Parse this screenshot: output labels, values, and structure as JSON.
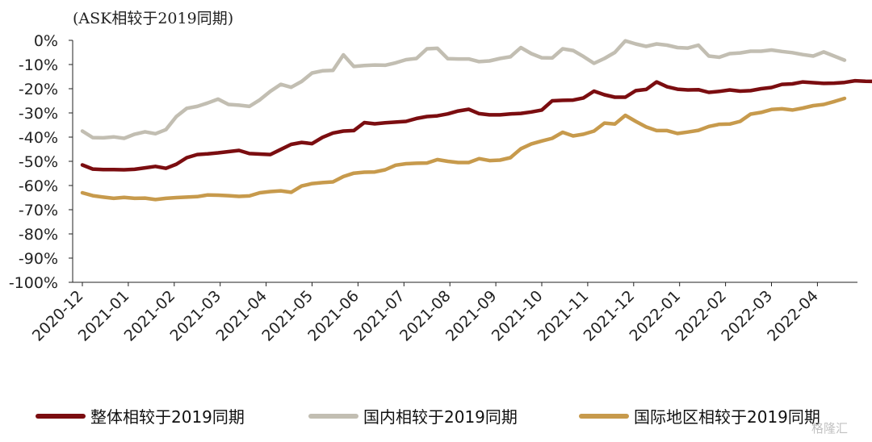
{
  "chart_data": {
    "type": "line",
    "title": "(ASK相较于2019同期)",
    "xlabel": "",
    "ylabel": "",
    "ylim": [
      -100,
      0
    ],
    "yticks": [
      0,
      -10,
      -20,
      -30,
      -40,
      -50,
      -60,
      -70,
      -80,
      -90,
      -100
    ],
    "ytick_labels": [
      "0%",
      "-10%",
      "-20%",
      "-30%",
      "-40%",
      "-50%",
      "-60%",
      "-70%",
      "-80%",
      "-90%",
      "-100%"
    ],
    "x_tick_labels": [
      "2020-12",
      "2021-01",
      "2021-02",
      "2021-03",
      "2021-04",
      "2021-05",
      "2021-06",
      "2021-07",
      "2021-08",
      "2021-09",
      "2021-10",
      "2021-11",
      "2021-12",
      "2022-01",
      "2022-02",
      "2022-03",
      "2022-04"
    ],
    "points_per_month": 4.4,
    "legend_position": "bottom",
    "grid": false,
    "series": [
      {
        "name": "整体相较于2019同期",
        "color": "#7B0D10",
        "values": [
          -51.5,
          -53.2,
          -53.4,
          -53.4,
          -53.5,
          -53.3,
          -52.7,
          -52.1,
          -52.9,
          -51.2,
          -48.5,
          -47.2,
          -46.9,
          -46.5,
          -46.0,
          -45.5,
          -46.8,
          -47.0,
          -47.2,
          -45.1,
          -43.0,
          -42.2,
          -42.7,
          -40.1,
          -38.3,
          -37.5,
          -37.3,
          -34.0,
          -34.5,
          -34.1,
          -33.8,
          -33.5,
          -32.3,
          -31.5,
          -31.2,
          -30.4,
          -29.2,
          -28.5,
          -30.3,
          -30.8,
          -30.8,
          -30.4,
          -30.2,
          -29.6,
          -28.8,
          -25.0,
          -24.8,
          -24.7,
          -23.8,
          -21.0,
          -22.5,
          -23.5,
          -23.5,
          -20.8,
          -20.3,
          -17.2,
          -19.2,
          -20.2,
          -20.5,
          -20.4,
          -21.5,
          -21.1,
          -20.5,
          -21.0,
          -20.8,
          -20.0,
          -19.5,
          -18.2,
          -18.0,
          -17.2,
          -17.5,
          -17.8,
          -17.7,
          -17.4,
          -16.7,
          -16.9,
          -17.0,
          -16.8
        ]
      },
      {
        "name": "国内相较于2019同期",
        "color": "#C2BEB2",
        "values": [
          -37.5,
          -40.2,
          -40.3,
          -39.9,
          -40.5,
          -38.8,
          -37.8,
          -38.6,
          -36.9,
          -31.5,
          -28.1,
          -27.3,
          -25.9,
          -24.3,
          -26.5,
          -26.8,
          -27.3,
          -24.6,
          -21.1,
          -18.2,
          -19.4,
          -17.0,
          -13.5,
          -12.6,
          -12.4,
          -6.0,
          -10.8,
          -10.4,
          -10.2,
          -10.3,
          -9.3,
          -8.0,
          -7.5,
          -3.5,
          -3.3,
          -7.6,
          -7.7,
          -7.7,
          -8.8,
          -8.5,
          -7.5,
          -6.8,
          -3.0,
          -5.5,
          -7.2,
          -7.3,
          -3.5,
          -4.2,
          -6.7,
          -9.5,
          -7.5,
          -5.0,
          -0.2,
          -1.5,
          -2.5,
          -1.5,
          -2.0,
          -3.0,
          -3.2,
          -2.0,
          -6.5,
          -7.0,
          -5.5,
          -5.2,
          -4.5,
          -4.5,
          -4.0,
          -4.6,
          -5.1,
          -5.9,
          -6.5,
          -4.8,
          -6.5,
          -8.2
        ]
      },
      {
        "name": "国际地区相较于2019同期",
        "color": "#C79A4C",
        "values": [
          -63.0,
          -64.2,
          -64.8,
          -65.3,
          -64.9,
          -65.3,
          -65.2,
          -65.8,
          -65.3,
          -65.0,
          -64.8,
          -64.6,
          -63.9,
          -64.0,
          -64.2,
          -64.5,
          -64.3,
          -63.0,
          -62.5,
          -62.2,
          -62.8,
          -60.2,
          -59.2,
          -58.8,
          -58.5,
          -56.3,
          -54.9,
          -54.5,
          -54.4,
          -53.5,
          -51.6,
          -51.0,
          -50.8,
          -50.7,
          -49.3,
          -50.0,
          -50.5,
          -50.5,
          -48.9,
          -49.7,
          -49.5,
          -48.5,
          -44.8,
          -42.8,
          -41.6,
          -40.5,
          -38.0,
          -39.5,
          -38.8,
          -37.5,
          -34.2,
          -34.6,
          -31.0,
          -33.5,
          -35.8,
          -37.3,
          -37.3,
          -38.5,
          -37.9,
          -37.2,
          -35.6,
          -34.7,
          -34.6,
          -33.5,
          -30.5,
          -29.8,
          -28.6,
          -28.3,
          -28.8,
          -28.0,
          -27.0,
          -26.5,
          -25.3,
          -24.0
        ]
      }
    ]
  },
  "watermark": {
    "text": "格隆汇"
  },
  "colors": {
    "axis": "#222222"
  }
}
